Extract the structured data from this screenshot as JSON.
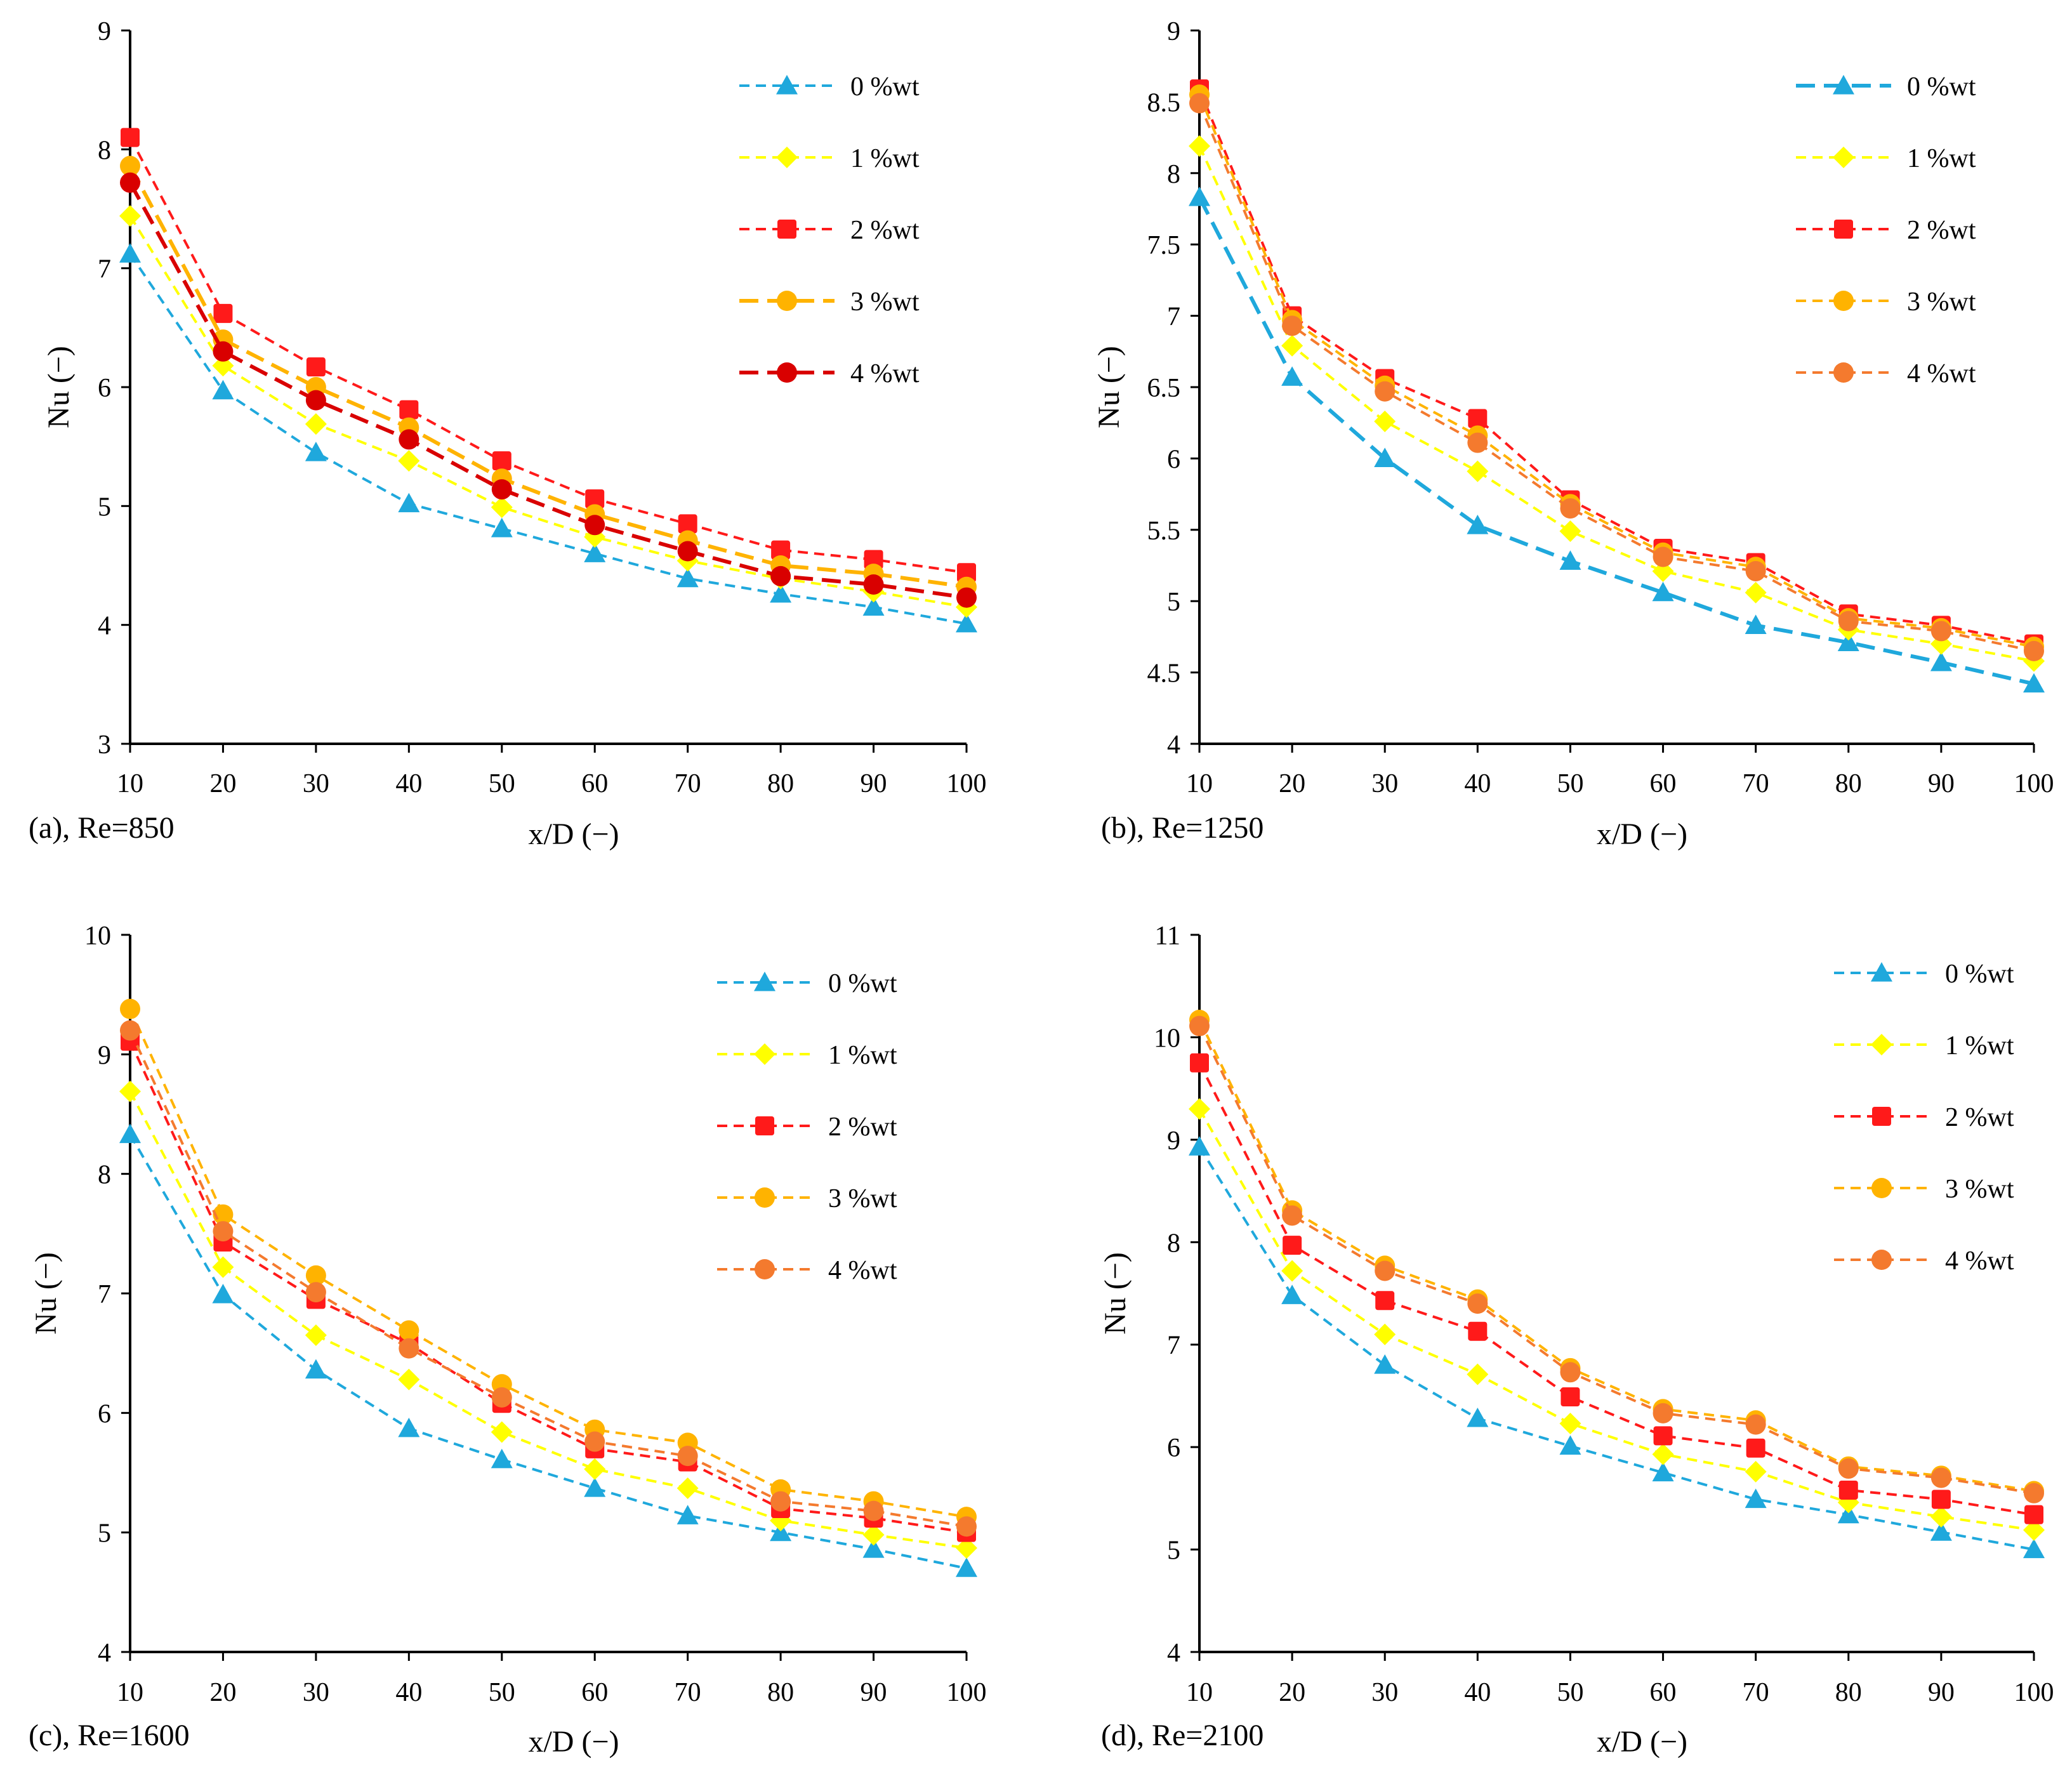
{
  "chart_data": [
    {
      "type": "line",
      "panel_label": "(a), Re=850",
      "xlabel": "x/D (−)",
      "ylabel": "Nu (−)",
      "x": [
        10,
        20,
        30,
        40,
        50,
        60,
        70,
        80,
        90,
        100
      ],
      "xticks": [
        "10",
        "20",
        "30",
        "40",
        "50",
        "60",
        "70",
        "80",
        "90",
        "100"
      ],
      "ylim": [
        3,
        9
      ],
      "yticks": [
        "3",
        "4",
        "5",
        "6",
        "7",
        "8",
        "9"
      ],
      "ytick_values": [
        3,
        4,
        5,
        6,
        7,
        8,
        9
      ],
      "series": [
        {
          "name": "0 %wt",
          "color": "#1fa8dc",
          "marker": "triangle",
          "dash": "dash",
          "values": [
            7.12,
            5.97,
            5.45,
            5.02,
            4.81,
            4.6,
            4.39,
            4.26,
            4.15,
            4.01
          ]
        },
        {
          "name": "1 %wt",
          "color": "#ffff00",
          "marker": "diamond",
          "dash": "dash",
          "values": [
            7.44,
            6.18,
            5.69,
            5.38,
            4.99,
            4.74,
            4.54,
            4.39,
            4.28,
            4.15
          ]
        },
        {
          "name": "2 %wt",
          "color": "#ff1a1a",
          "marker": "square",
          "dash": "dash",
          "values": [
            8.1,
            6.62,
            6.17,
            5.81,
            5.38,
            5.06,
            4.85,
            4.63,
            4.55,
            4.44
          ]
        },
        {
          "name": "3 %wt",
          "color": "#ffb300",
          "marker": "circle",
          "dash": "longdash",
          "values": [
            7.86,
            6.4,
            6.0,
            5.66,
            5.23,
            4.93,
            4.71,
            4.5,
            4.43,
            4.32
          ]
        },
        {
          "name": "4 %wt",
          "color": "#d90000",
          "marker": "circle",
          "dash": "longdash",
          "values": [
            7.72,
            6.3,
            5.89,
            5.56,
            5.14,
            4.84,
            4.62,
            4.41,
            4.34,
            4.23
          ]
        }
      ]
    },
    {
      "type": "line",
      "panel_label": "(b), Re=1250",
      "xlabel": "x/D (−)",
      "ylabel": "Nu (−)",
      "x": [
        10,
        20,
        30,
        40,
        50,
        60,
        70,
        80,
        90,
        100
      ],
      "xticks": [
        "10",
        "20",
        "30",
        "40",
        "50",
        "60",
        "70",
        "80",
        "90",
        "100"
      ],
      "ylim": [
        4,
        9
      ],
      "yticks": [
        "4",
        "4.5",
        "5",
        "5.5",
        "6",
        "6.5",
        "7",
        "7.5",
        "8",
        "8.5",
        "9"
      ],
      "ytick_values": [
        4,
        4.5,
        5,
        5.5,
        6,
        6.5,
        7,
        7.5,
        8,
        8.5,
        9
      ],
      "series": [
        {
          "name": "0 %wt",
          "color": "#1fa8dc",
          "marker": "triangle",
          "dash": "longdash",
          "values": [
            7.83,
            6.57,
            6.0,
            5.53,
            5.28,
            5.06,
            4.83,
            4.71,
            4.57,
            4.42
          ]
        },
        {
          "name": "1 %wt",
          "color": "#ffff00",
          "marker": "diamond",
          "dash": "dash",
          "values": [
            8.19,
            6.79,
            6.26,
            5.91,
            5.49,
            5.21,
            5.06,
            4.8,
            4.7,
            4.58
          ]
        },
        {
          "name": "2 %wt",
          "color": "#ff1a1a",
          "marker": "square",
          "dash": "dash",
          "values": [
            8.59,
            7.0,
            6.56,
            6.28,
            5.71,
            5.37,
            5.27,
            4.91,
            4.83,
            4.7
          ]
        },
        {
          "name": "3 %wt",
          "color": "#ffb300",
          "marker": "circle",
          "dash": "dash",
          "values": [
            8.55,
            6.97,
            6.51,
            6.16,
            5.68,
            5.34,
            5.24,
            4.88,
            4.81,
            4.68
          ]
        },
        {
          "name": "4 %wt",
          "color": "#f47a2e",
          "marker": "circle",
          "dash": "dash",
          "values": [
            8.49,
            6.93,
            6.47,
            6.11,
            5.65,
            5.31,
            5.21,
            4.86,
            4.79,
            4.65
          ]
        }
      ]
    },
    {
      "type": "line",
      "panel_label": "(c), Re=1600",
      "xlabel": "x/D (−)",
      "ylabel": "Nu (−)",
      "x": [
        10,
        20,
        30,
        40,
        50,
        60,
        70,
        80,
        90,
        100
      ],
      "xticks": [
        "10",
        "20",
        "30",
        "40",
        "50",
        "60",
        "70",
        "80",
        "90",
        "100"
      ],
      "ylim": [
        4,
        10
      ],
      "yticks": [
        "4",
        "5",
        "6",
        "7",
        "8",
        "9",
        "10"
      ],
      "ytick_values": [
        4,
        5,
        6,
        7,
        8,
        9,
        10
      ],
      "series": [
        {
          "name": "0 %wt",
          "color": "#1fa8dc",
          "marker": "triangle",
          "dash": "dash",
          "values": [
            8.33,
            6.99,
            6.36,
            5.87,
            5.61,
            5.37,
            5.14,
            5.0,
            4.86,
            4.7
          ]
        },
        {
          "name": "1 %wt",
          "color": "#ffff00",
          "marker": "diamond",
          "dash": "dash",
          "values": [
            8.69,
            7.22,
            6.65,
            6.28,
            5.84,
            5.53,
            5.37,
            5.1,
            4.98,
            4.87
          ]
        },
        {
          "name": "2 %wt",
          "color": "#ff1a1a",
          "marker": "square",
          "dash": "dash",
          "values": [
            9.11,
            7.43,
            6.95,
            6.58,
            6.08,
            5.7,
            5.59,
            5.2,
            5.12,
            5.0
          ]
        },
        {
          "name": "3 %wt",
          "color": "#ffb300",
          "marker": "circle",
          "dash": "dash",
          "values": [
            9.38,
            7.66,
            7.15,
            6.69,
            6.24,
            5.86,
            5.75,
            5.36,
            5.26,
            5.13
          ]
        },
        {
          "name": "4 %wt",
          "color": "#f47a2e",
          "marker": "circle",
          "dash": "dash",
          "values": [
            9.2,
            7.52,
            7.01,
            6.54,
            6.13,
            5.76,
            5.64,
            5.26,
            5.18,
            5.05
          ]
        }
      ]
    },
    {
      "type": "line",
      "panel_label": "(d), Re=2100",
      "xlabel": "x/D (−)",
      "ylabel": "Nu (−)",
      "x": [
        10,
        20,
        30,
        40,
        50,
        60,
        70,
        80,
        90,
        100
      ],
      "xticks": [
        "10",
        "20",
        "30",
        "40",
        "50",
        "60",
        "70",
        "80",
        "90",
        "100"
      ],
      "ylim": [
        4,
        11
      ],
      "yticks": [
        "4",
        "5",
        "6",
        "7",
        "8",
        "9",
        "10",
        "11"
      ],
      "ytick_values": [
        4,
        5,
        6,
        7,
        8,
        9,
        10,
        11
      ],
      "series": [
        {
          "name": "0 %wt",
          "color": "#1fa8dc",
          "marker": "triangle",
          "dash": "dash",
          "values": [
            8.93,
            7.48,
            6.8,
            6.28,
            6.01,
            5.75,
            5.49,
            5.34,
            5.17,
            5.0
          ]
        },
        {
          "name": "1 %wt",
          "color": "#ffff00",
          "marker": "diamond",
          "dash": "dash",
          "values": [
            9.3,
            7.72,
            7.1,
            6.71,
            6.23,
            5.93,
            5.76,
            5.46,
            5.32,
            5.19
          ]
        },
        {
          "name": "2 %wt",
          "color": "#ff1a1a",
          "marker": "square",
          "dash": "dash",
          "values": [
            9.75,
            7.97,
            7.43,
            7.13,
            6.49,
            6.11,
            5.99,
            5.58,
            5.49,
            5.34
          ]
        },
        {
          "name": "3 %wt",
          "color": "#ffb300",
          "marker": "circle",
          "dash": "dash",
          "values": [
            10.17,
            8.31,
            7.77,
            7.44,
            6.77,
            6.37,
            6.26,
            5.81,
            5.72,
            5.57
          ]
        },
        {
          "name": "4 %wt",
          "color": "#f47a2e",
          "marker": "circle",
          "dash": "dash",
          "values": [
            10.11,
            8.26,
            7.72,
            7.4,
            6.73,
            6.33,
            6.22,
            5.79,
            5.7,
            5.55
          ]
        }
      ]
    }
  ]
}
